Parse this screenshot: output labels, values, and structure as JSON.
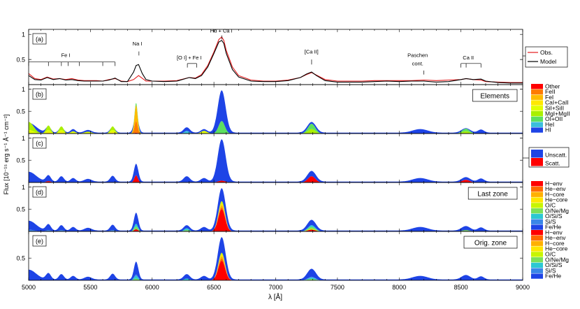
{
  "figure": {
    "xlabel": "λ [Å]",
    "ylabel": "Flux [10⁻¹⁵ erg s⁻¹ Å⁻¹ cm⁻²]",
    "x_ticks": [
      "5000",
      "5500",
      "6000",
      "6500",
      "7000",
      "7500",
      "8000",
      "8500",
      "9000"
    ]
  },
  "chart_data": [
    {
      "type": "line",
      "panel": "(a)",
      "xlim": [
        5000,
        9000
      ],
      "ylim": [
        0,
        1.1
      ],
      "y_ticks": [
        "0.5",
        "1"
      ],
      "series": [
        {
          "name": "Obs.",
          "color": "#e41a1c",
          "x": [
            5000,
            5050,
            5100,
            5150,
            5200,
            5250,
            5300,
            5350,
            5400,
            5450,
            5500,
            5550,
            5600,
            5650,
            5700,
            5750,
            5800,
            5850,
            5890,
            5950,
            6000,
            6100,
            6200,
            6300,
            6350,
            6400,
            6450,
            6500,
            6540,
            6563,
            6580,
            6600,
            6650,
            6700,
            6800,
            6900,
            7000,
            7100,
            7200,
            7250,
            7291,
            7330,
            7400,
            7500,
            7600,
            7700,
            7800,
            7900,
            8000,
            8100,
            8200,
            8300,
            8400,
            8500,
            8542,
            8600,
            8662,
            8700,
            8800,
            8900,
            9000
          ],
          "y": [
            0.22,
            0.12,
            0.1,
            0.15,
            0.11,
            0.12,
            0.1,
            0.12,
            0.09,
            0.08,
            0.08,
            0.08,
            0.07,
            0.1,
            0.12,
            0.07,
            0.06,
            0.1,
            0.18,
            0.07,
            0.07,
            0.07,
            0.08,
            0.14,
            0.13,
            0.2,
            0.38,
            0.65,
            0.9,
            0.95,
            0.88,
            0.68,
            0.35,
            0.18,
            0.09,
            0.07,
            0.07,
            0.09,
            0.14,
            0.2,
            0.24,
            0.19,
            0.1,
            0.07,
            0.07,
            0.07,
            0.08,
            0.08,
            0.08,
            0.08,
            0.09,
            0.08,
            0.09,
            0.1,
            0.12,
            0.1,
            0.09,
            0.06,
            0.05,
            0.04,
            0.04
          ]
        },
        {
          "name": "Model",
          "color": "#000000",
          "x": [
            5000,
            5050,
            5100,
            5150,
            5200,
            5250,
            5300,
            5350,
            5400,
            5450,
            5500,
            5550,
            5600,
            5650,
            5700,
            5750,
            5800,
            5850,
            5870,
            5890,
            5920,
            5950,
            6000,
            6100,
            6200,
            6300,
            6350,
            6400,
            6450,
            6500,
            6540,
            6563,
            6580,
            6600,
            6650,
            6700,
            6800,
            6900,
            7000,
            7100,
            7200,
            7250,
            7291,
            7330,
            7400,
            7500,
            7600,
            7700,
            7800,
            7900,
            8000,
            8100,
            8200,
            8300,
            8400,
            8500,
            8542,
            8600,
            8662,
            8700,
            8800,
            8900,
            9000
          ],
          "y": [
            0.18,
            0.1,
            0.09,
            0.14,
            0.1,
            0.12,
            0.09,
            0.1,
            0.08,
            0.07,
            0.07,
            0.07,
            0.07,
            0.09,
            0.13,
            0.06,
            0.06,
            0.25,
            0.38,
            0.4,
            0.22,
            0.1,
            0.07,
            0.06,
            0.07,
            0.14,
            0.12,
            0.18,
            0.35,
            0.62,
            0.85,
            0.88,
            0.82,
            0.62,
            0.3,
            0.15,
            0.07,
            0.06,
            0.06,
            0.08,
            0.14,
            0.21,
            0.25,
            0.18,
            0.08,
            0.05,
            0.05,
            0.05,
            0.06,
            0.07,
            0.06,
            0.07,
            0.07,
            0.05,
            0.06,
            0.1,
            0.12,
            0.1,
            0.11,
            0.07,
            0.04,
            0.03,
            0.03
          ]
        }
      ],
      "annotations": [
        {
          "text": "Fe I",
          "x": 5300,
          "y": 0.55
        },
        {
          "text": "Na I",
          "x": 5880,
          "y": 0.78
        },
        {
          "text": "[O I] + Fe I",
          "x": 6300,
          "y": 0.5
        },
        {
          "text": "Hα + Ca I",
          "x": 6560,
          "y": 1.04
        },
        {
          "text": "[Ca II]",
          "x": 7290,
          "y": 0.62
        },
        {
          "text": "Paschen",
          "x": 8150,
          "y": 0.55
        },
        {
          "text": "cont.",
          "x": 8150,
          "y": 0.38
        },
        {
          "text": "Ca II",
          "x": 8560,
          "y": 0.5
        }
      ],
      "legend": {
        "position": "right-outside",
        "entries": [
          "Obs.",
          "Model"
        ]
      }
    },
    {
      "type": "area",
      "panel": "(b)",
      "title": "Elements",
      "xlim": [
        5000,
        9000
      ],
      "ylim": [
        0,
        1.1
      ],
      "y_ticks": [
        "0.5",
        "1"
      ],
      "legend": {
        "position": "right-outside",
        "entries": [
          {
            "name": "Other",
            "color": "#ff0000"
          },
          {
            "name": "FeII",
            "color": "#ff7b00"
          },
          {
            "name": "FeI",
            "color": "#ffbb00"
          },
          {
            "name": "CaI+CaII",
            "color": "#ffe800"
          },
          {
            "name": "SiI+SiII",
            "color": "#e1ff00"
          },
          {
            "name": "MgI+MgII",
            "color": "#aaf000"
          },
          {
            "name": "OI+OII",
            "color": "#5de060"
          },
          {
            "name": "HeI",
            "color": "#3cbedc"
          },
          {
            "name": "HI",
            "color": "#1e44e6"
          }
        ]
      }
    },
    {
      "type": "area",
      "panel": "(c)",
      "xlim": [
        5000,
        9000
      ],
      "ylim": [
        0,
        1.1
      ],
      "y_ticks": [
        "0.5",
        "1"
      ],
      "legend": {
        "position": "right-outside",
        "entries": [
          {
            "name": "Unscatt.",
            "color": "#1e44e6"
          },
          {
            "name": "Scatt.",
            "color": "#ff0000"
          }
        ]
      }
    },
    {
      "type": "area",
      "panel": "(d)",
      "title": "Last zone",
      "xlim": [
        5000,
        9000
      ],
      "ylim": [
        0,
        1.1
      ],
      "y_ticks": [
        "0.5",
        "1"
      ]
    },
    {
      "type": "area",
      "panel": "(e)",
      "title": "Orig. zone",
      "xlim": [
        5000,
        9000
      ],
      "ylim": [
        0,
        1.1
      ],
      "y_ticks": [
        "0.5"
      ]
    }
  ],
  "zone_legend": {
    "entries": [
      {
        "name": "H−env",
        "color": "#ff0000"
      },
      {
        "name": "He−env",
        "color": "#ff6a00"
      },
      {
        "name": "H−core",
        "color": "#ffb000"
      },
      {
        "name": "He−core",
        "color": "#ffe600"
      },
      {
        "name": "O/C",
        "color": "#c8f500"
      },
      {
        "name": "O/Ne/Mg",
        "color": "#7be05a"
      },
      {
        "name": "O/Si/S",
        "color": "#2cc8d2"
      },
      {
        "name": "Si/S",
        "color": "#3a86e8"
      },
      {
        "name": "Fe/He",
        "color": "#1e44e6"
      }
    ]
  },
  "shapes": {
    "bgpeaks": [
      [
        5000,
        0.22,
        60
      ],
      [
        5160,
        0.14,
        20
      ],
      [
        5265,
        0.12,
        20
      ],
      [
        5360,
        0.08,
        20
      ],
      [
        5480,
        0.06,
        30
      ],
      [
        5680,
        0.13,
        20
      ],
      [
        5870,
        0.4,
        18
      ],
      [
        6280,
        0.12,
        25
      ],
      [
        6420,
        0.08,
        25
      ],
      [
        6563,
        0.95,
        32
      ],
      [
        7291,
        0.24,
        35
      ],
      [
        8170,
        0.08,
        60
      ],
      [
        8540,
        0.1,
        35
      ],
      [
        8662,
        0.07,
        25
      ]
    ]
  },
  "stacks": {
    "b": {
      "colors": [
        "#1e44e6",
        "#3cbedc",
        "#5de060",
        "#aaf000",
        "#e1ff00",
        "#ffe800",
        "#ffbb00",
        "#ff7b00",
        "#ff0000"
      ],
      "specs": [
        {
          "frac": 1.0,
          "peaks": [
            [
              6563,
              0.95,
              32
            ],
            [
              8170,
              0.05,
              60
            ],
            [
              8540,
              0.03,
              30
            ]
          ]
        },
        {
          "frac": 0.0,
          "peaks": [
            [
              6280,
              0.06,
              20
            ]
          ]
        },
        {
          "frac": 0.0,
          "peaks": [
            [
              6563,
              0.28,
              25
            ],
            [
              7291,
              0.12,
              30
            ],
            [
              8540,
              0.06,
              30
            ],
            [
              5870,
              0.05,
              20
            ]
          ]
        },
        {
          "frac": 0.0,
          "peaks": [
            [
              5000,
              0.18,
              40
            ],
            [
              5160,
              0.1,
              18
            ],
            [
              5265,
              0.08,
              18
            ],
            [
              5680,
              0.08,
              18
            ],
            [
              7291,
              0.1,
              30
            ],
            [
              8540,
              0.05,
              30
            ]
          ]
        },
        {
          "frac": 0.0,
          "peaks": [
            [
              5000,
              0.08,
              40
            ],
            [
              5160,
              0.05,
              20
            ],
            [
              5265,
              0.05,
              20
            ],
            [
              5360,
              0.05,
              20
            ],
            [
              5480,
              0.04,
              30
            ],
            [
              5680,
              0.05,
              20
            ],
            [
              6420,
              0.06,
              25
            ]
          ]
        },
        {
          "frac": 0.0,
          "peaks": [
            [
              5160,
              0.03,
              20
            ],
            [
              5265,
              0.03,
              20
            ],
            [
              5680,
              0.03,
              20
            ]
          ]
        },
        {
          "frac": 0.0,
          "peaks": [
            [
              5870,
              0.36,
              14
            ]
          ]
        },
        {
          "frac": 0.0,
          "peaks": [
            [
              5870,
              0.26,
              12
            ]
          ]
        },
        {
          "frac": 0.0,
          "peaks": [
            [
              5870,
              0.02,
              12
            ]
          ]
        }
      ]
    },
    "c": {
      "colors": [
        "#1e44e6",
        "#ff0000"
      ],
      "specs": [
        {
          "frac": 1.0,
          "peaks": []
        },
        {
          "frac": 0.0,
          "peaks": [
            [
              5870,
              0.16,
              14
            ],
            [
              7291,
              0.14,
              30
            ],
            [
              8540,
              0.06,
              30
            ],
            [
              6563,
              0.04,
              30
            ],
            [
              5160,
              0.03,
              20
            ]
          ]
        }
      ]
    },
    "d": {
      "colors": [
        "#1e44e6",
        "#3a86e8",
        "#2cc8d2",
        "#7be05a",
        "#c8f500",
        "#ffe600",
        "#ffb000",
        "#ff6a00",
        "#ff0000"
      ],
      "specs": [
        {
          "frac": 1.0,
          "peaks": []
        },
        {
          "frac": 0.0,
          "peaks": [
            [
              5000,
              0.04,
              40
            ],
            [
              5160,
              0.03,
              20
            ],
            [
              5265,
              0.03,
              20
            ],
            [
              5680,
              0.03,
              20
            ]
          ]
        },
        {
          "frac": 0.0,
          "peaks": [
            [
              5870,
              0.06,
              16
            ],
            [
              6280,
              0.04,
              20
            ],
            [
              7291,
              0.04,
              30
            ]
          ]
        },
        {
          "frac": 0.0,
          "peaks": [
            [
              5870,
              0.06,
              16
            ],
            [
              6280,
              0.03,
              20
            ],
            [
              7291,
              0.04,
              30
            ],
            [
              8540,
              0.03,
              30
            ]
          ]
        },
        {
          "frac": 0.0,
          "peaks": [
            [
              6563,
              0.05,
              25
            ],
            [
              7291,
              0.02,
              30
            ]
          ]
        },
        {
          "frac": 0.0,
          "peaks": [
            [
              6563,
              0.04,
              25
            ]
          ]
        },
        {
          "frac": 0.0,
          "peaks": [
            [
              6563,
              0.05,
              26
            ]
          ]
        },
        {
          "frac": 0.0,
          "peaks": [
            [
              6563,
              0.04,
              26
            ]
          ]
        },
        {
          "frac": 0.0,
          "peaks": [
            [
              6563,
              0.5,
              28
            ],
            [
              5870,
              0.05,
              15
            ],
            [
              7291,
              0.04,
              30
            ]
          ]
        }
      ]
    },
    "e": {
      "colors": [
        "#1e44e6",
        "#3a86e8",
        "#2cc8d2",
        "#7be05a",
        "#c8f500",
        "#ffe600",
        "#ffb000",
        "#ff6a00",
        "#ff0000"
      ],
      "specs": [
        {
          "frac": 1.0,
          "peaks": []
        },
        {
          "frac": 0.0,
          "peaks": [
            [
              5870,
              0.03,
              16
            ],
            [
              7291,
              0.02,
              30
            ]
          ]
        },
        {
          "frac": 0.0,
          "peaks": [
            [
              5870,
              0.06,
              16
            ],
            [
              6280,
              0.04,
              20
            ],
            [
              7291,
              0.03,
              30
            ]
          ]
        },
        {
          "frac": 0.0,
          "peaks": [
            [
              5870,
              0.04,
              16
            ],
            [
              7291,
              0.03,
              30
            ]
          ]
        },
        {
          "frac": 0.0,
          "peaks": [
            [
              6563,
              0.04,
              25
            ]
          ]
        },
        {
          "frac": 0.0,
          "peaks": [
            [
              6563,
              0.04,
              25
            ]
          ]
        },
        {
          "frac": 0.0,
          "peaks": [
            [
              6563,
              0.05,
              26
            ]
          ]
        },
        {
          "frac": 0.0,
          "peaks": [
            [
              6563,
              0.05,
              26
            ]
          ]
        },
        {
          "frac": 0.0,
          "peaks": [
            [
              6563,
              0.44,
              28
            ]
          ]
        }
      ]
    }
  }
}
